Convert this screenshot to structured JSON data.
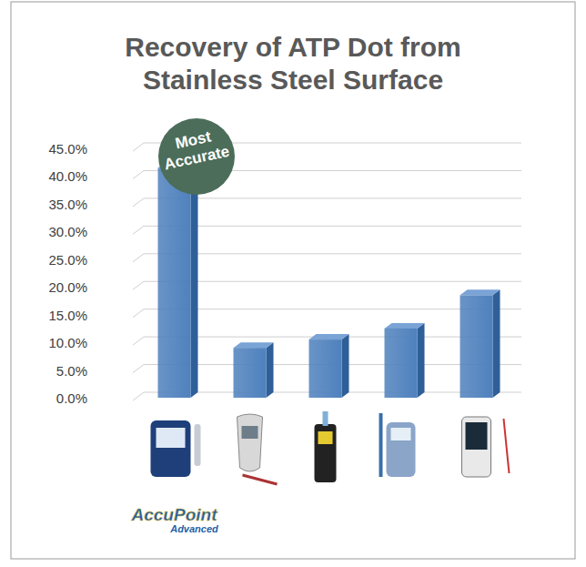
{
  "chart_data": {
    "type": "bar",
    "title": "Recovery of ATP Dot from Stainless Steel Surface",
    "categories": [
      null,
      null,
      null,
      null,
      null
    ],
    "values": [
      41.5,
      9,
      10.5,
      12.5,
      18.5
    ],
    "color": "#4f81bd",
    "ylim": [
      0,
      45
    ],
    "yticks": [
      {
        "value": 0,
        "label": "0.0%"
      },
      {
        "value": 5,
        "label": "5.0%"
      },
      {
        "value": 10,
        "label": "10.0%"
      },
      {
        "value": 15,
        "label": "15.0%"
      },
      {
        "value": 20,
        "label": "20.0%"
      },
      {
        "value": 25,
        "label": "25.0%"
      },
      {
        "value": 30,
        "label": "30.0%"
      },
      {
        "value": 35,
        "label": "35.0%"
      },
      {
        "value": 40,
        "label": "40.0%"
      },
      {
        "value": 45,
        "label": "45.0%"
      }
    ],
    "grid": true,
    "annotation": "Most Accurate",
    "logo": [
      "AccuPoint",
      "Advanced"
    ]
  }
}
